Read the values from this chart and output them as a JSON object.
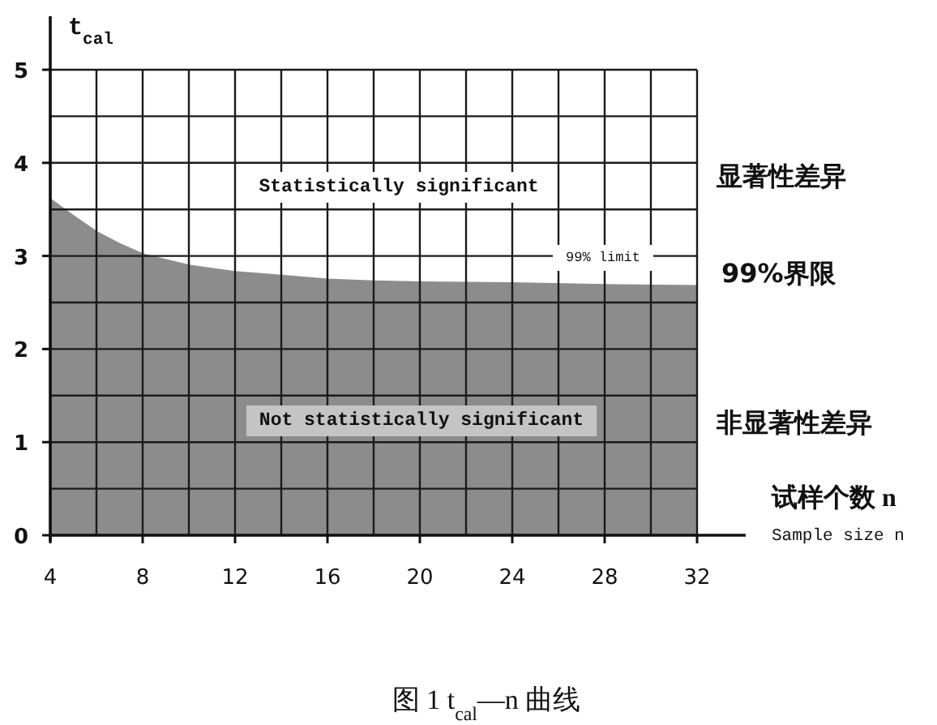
{
  "chart_data": {
    "type": "area",
    "title": "图 1 t$_{cal}$—n 曲线",
    "xlabel": "试样个数 n",
    "ylabel": "t$_{cal}$",
    "annotations": [
      "Statistically significant",
      "99% limit",
      "Not statistically significant",
      "显著性差异",
      "99%界限",
      "非显著性差异",
      "Sample size n"
    ],
    "x": [
      4,
      5,
      6,
      7,
      8,
      9,
      10,
      12,
      14,
      16,
      18,
      20,
      24,
      28,
      32
    ],
    "series": [
      {
        "color": "#8c8c8c",
        "values": [
          3.6,
          3.42,
          3.25,
          3.12,
          3.01,
          2.95,
          2.89,
          2.82,
          2.78,
          2.74,
          2.72,
          2.71,
          2.7,
          2.68,
          2.67
        ]
      }
    ],
    "xlim": [
      4,
      32
    ],
    "ylim": [
      0,
      5
    ],
    "xticks": [
      4,
      {
        "value": 6,
        "label": null
      },
      8,
      {
        "value": 10,
        "label": null
      },
      12,
      {
        "value": 14,
        "label": null
      },
      16,
      {
        "value": 18,
        "label": null
      },
      20,
      {
        "value": 22,
        "label": null
      },
      24,
      {
        "value": 26,
        "label": null
      },
      28,
      {
        "value": 30,
        "label": null
      },
      32
    ],
    "yticks": [
      0,
      {
        "value": 0.5,
        "label": null
      },
      1,
      {
        "value": 1.5,
        "label": null
      },
      2,
      {
        "value": 2.5,
        "label": null
      },
      3,
      {
        "value": 3.5,
        "label": null
      },
      4,
      {
        "value": 4.5,
        "label": null
      },
      5
    ],
    "grid": true
  }
}
